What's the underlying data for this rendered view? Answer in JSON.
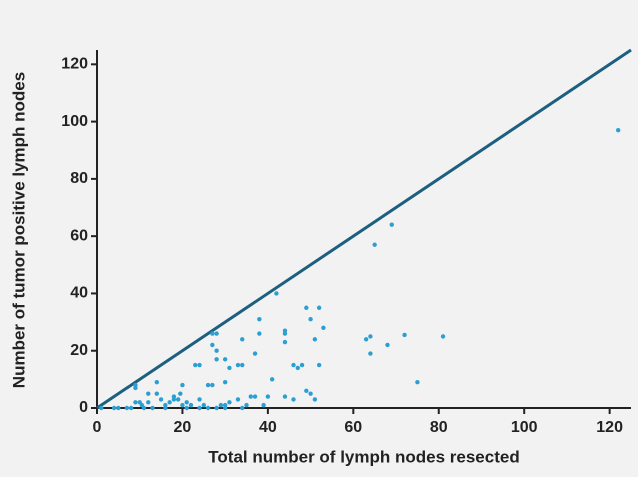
{
  "chart_data": {
    "type": "scatter",
    "x_label": "Total number of lymph nodes resected",
    "y_label": "Number of tumor positive lymph nodes",
    "color": "#2b9fd3",
    "line_color": "#1c5f80",
    "x": [
      122,
      69,
      65,
      42,
      72,
      81,
      64,
      63,
      64,
      68,
      75,
      49,
      52,
      53,
      50,
      51,
      44,
      44,
      44,
      38,
      38,
      37,
      34,
      33,
      34,
      27,
      28,
      27,
      28,
      28,
      30,
      31,
      30,
      26,
      27,
      23,
      24,
      20,
      19.5,
      41,
      46,
      47,
      48,
      52,
      49,
      50,
      51,
      44,
      46,
      40,
      37,
      36,
      39,
      35,
      33,
      31,
      30,
      29,
      28,
      26,
      25,
      24,
      22,
      21,
      20,
      19,
      18,
      18,
      17,
      16,
      15,
      14,
      14,
      12,
      12,
      10.5,
      10,
      9,
      8,
      7,
      5,
      9,
      9,
      11,
      13,
      16,
      21,
      24,
      30,
      34,
      4,
      1
    ],
    "y": [
      97,
      64,
      57,
      40,
      25.5,
      25,
      25,
      24,
      19,
      22,
      9,
      35,
      35,
      28,
      31,
      24,
      27,
      26,
      23,
      31,
      26,
      19,
      24,
      15,
      15,
      26,
      26,
      22,
      20,
      17,
      17,
      14,
      9,
      8,
      8,
      15,
      15,
      8,
      5,
      10,
      15,
      14,
      15,
      15,
      6,
      5,
      3,
      4,
      3,
      4,
      4,
      4,
      1,
      1,
      3,
      2,
      1,
      1,
      0,
      0,
      1,
      3,
      1,
      2,
      1,
      3,
      3,
      4,
      2,
      1,
      3,
      5,
      9,
      5,
      2,
      1,
      2,
      2,
      0,
      0,
      0,
      8,
      7,
      0,
      0,
      0,
      0,
      0,
      0,
      0,
      0,
      0
    ],
    "xlim": [
      0,
      125
    ],
    "ylim": [
      0,
      125
    ],
    "xticks": [
      0,
      20,
      40,
      60,
      80,
      100,
      120
    ],
    "yticks": [
      0,
      20,
      40,
      60,
      80,
      100,
      120
    ]
  }
}
